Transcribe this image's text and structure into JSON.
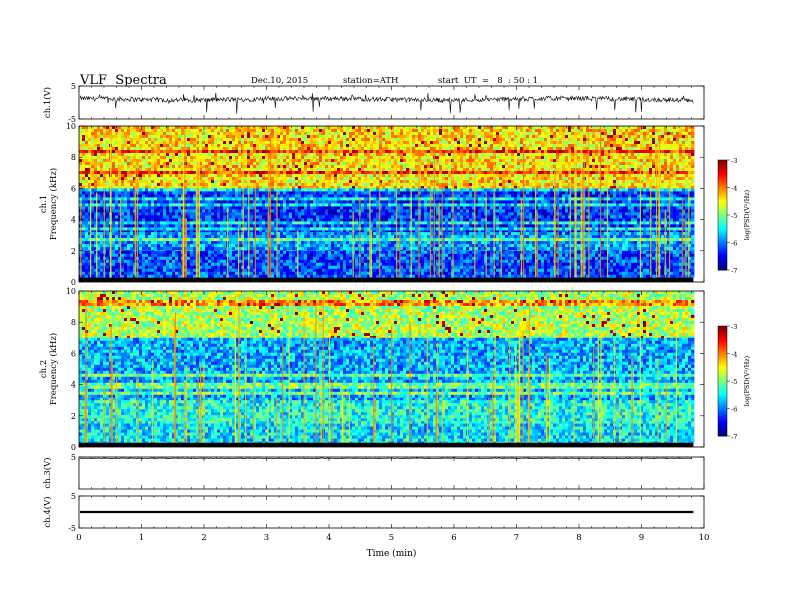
{
  "header": {
    "title": "VLF  Spectra",
    "date": "Dec.10, 2015",
    "station": "station=ATH",
    "start": "start  UT  =   8  : 50 : 1"
  },
  "chart_data": {
    "type": "heatmap",
    "x_axis": {
      "label": "Time  (min)",
      "range": [
        0,
        10
      ],
      "ticks": [
        "0",
        "1",
        "2",
        "3",
        "4",
        "5",
        "6",
        "7",
        "8",
        "9",
        "10"
      ],
      "data_end": 9.83
    },
    "panels": [
      {
        "id": "ch1-waveform",
        "kind": "line",
        "ylabel": "ch.1(V)",
        "ylim": [
          -5,
          5
        ],
        "yticks": [
          "5",
          "-5"
        ],
        "signal": "noisy trace centred near +1 V with spikes to about -5 V"
      },
      {
        "id": "ch1-spectrogram",
        "kind": "spectrogram",
        "ylabel_lines": [
          "ch.1",
          "Frequency  (kHz)"
        ],
        "ylim": [
          0,
          10
        ],
        "yticks": [
          "0",
          "2",
          "4",
          "6",
          "8",
          "10"
        ],
        "colorbar": {
          "label": "log(PSD(V²/Hz)",
          "range": [
            -7,
            -3
          ],
          "ticks": [
            "-3",
            "-4",
            "-5",
            "-6",
            "-7"
          ]
        },
        "bands": [
          {
            "from_khz": 6.0,
            "to_khz": 10.0,
            "level": -4.4,
            "desc": "yellow-green with red bursts"
          },
          {
            "from_khz": 3.2,
            "to_khz": 6.0,
            "level": -6.3,
            "desc": "dark blue"
          },
          {
            "from_khz": 2.0,
            "to_khz": 3.2,
            "level": -5.9,
            "desc": "blue"
          },
          {
            "from_khz": 0.3,
            "to_khz": 2.0,
            "level": -6.2,
            "desc": "blue with horizontal lines"
          }
        ]
      },
      {
        "id": "ch2-spectrogram",
        "kind": "spectrogram",
        "ylabel_lines": [
          "ch.2",
          "Frequency  (kHz)"
        ],
        "ylim": [
          0,
          10
        ],
        "yticks": [
          "0",
          "2",
          "4",
          "6",
          "8",
          "10"
        ],
        "colorbar": {
          "label": "log(PSD(V²/Hz)",
          "range": [
            -7,
            -3
          ],
          "ticks": [
            "-3",
            "-4",
            "-5",
            "-6",
            "-7"
          ]
        },
        "bands": [
          {
            "from_khz": 7.0,
            "to_khz": 10.0,
            "level": -4.8,
            "desc": "green with red bursts"
          },
          {
            "from_khz": 3.0,
            "to_khz": 7.0,
            "level": -5.8,
            "desc": "blue with cyan lines"
          },
          {
            "from_khz": 1.5,
            "to_khz": 3.0,
            "level": -5.4,
            "desc": "cyan / blue"
          },
          {
            "from_khz": 0.3,
            "to_khz": 1.5,
            "level": -5.6,
            "desc": "green-cyan horizontal lines"
          }
        ]
      },
      {
        "id": "ch3-waveform",
        "kind": "line",
        "ylabel": "ch.3(V)",
        "ylim": [
          -5,
          5
        ],
        "yticks": [
          "5"
        ],
        "signal": "flat near +5 V"
      },
      {
        "id": "ch4-waveform",
        "kind": "line",
        "ylabel": "ch.4(V)",
        "ylim": [
          -5,
          5
        ],
        "yticks": [
          "5",
          "-5"
        ],
        "signal": "thick flat trace near 0 V"
      }
    ]
  },
  "colors": {
    "axis": "#000000",
    "background": "#ffffff"
  }
}
